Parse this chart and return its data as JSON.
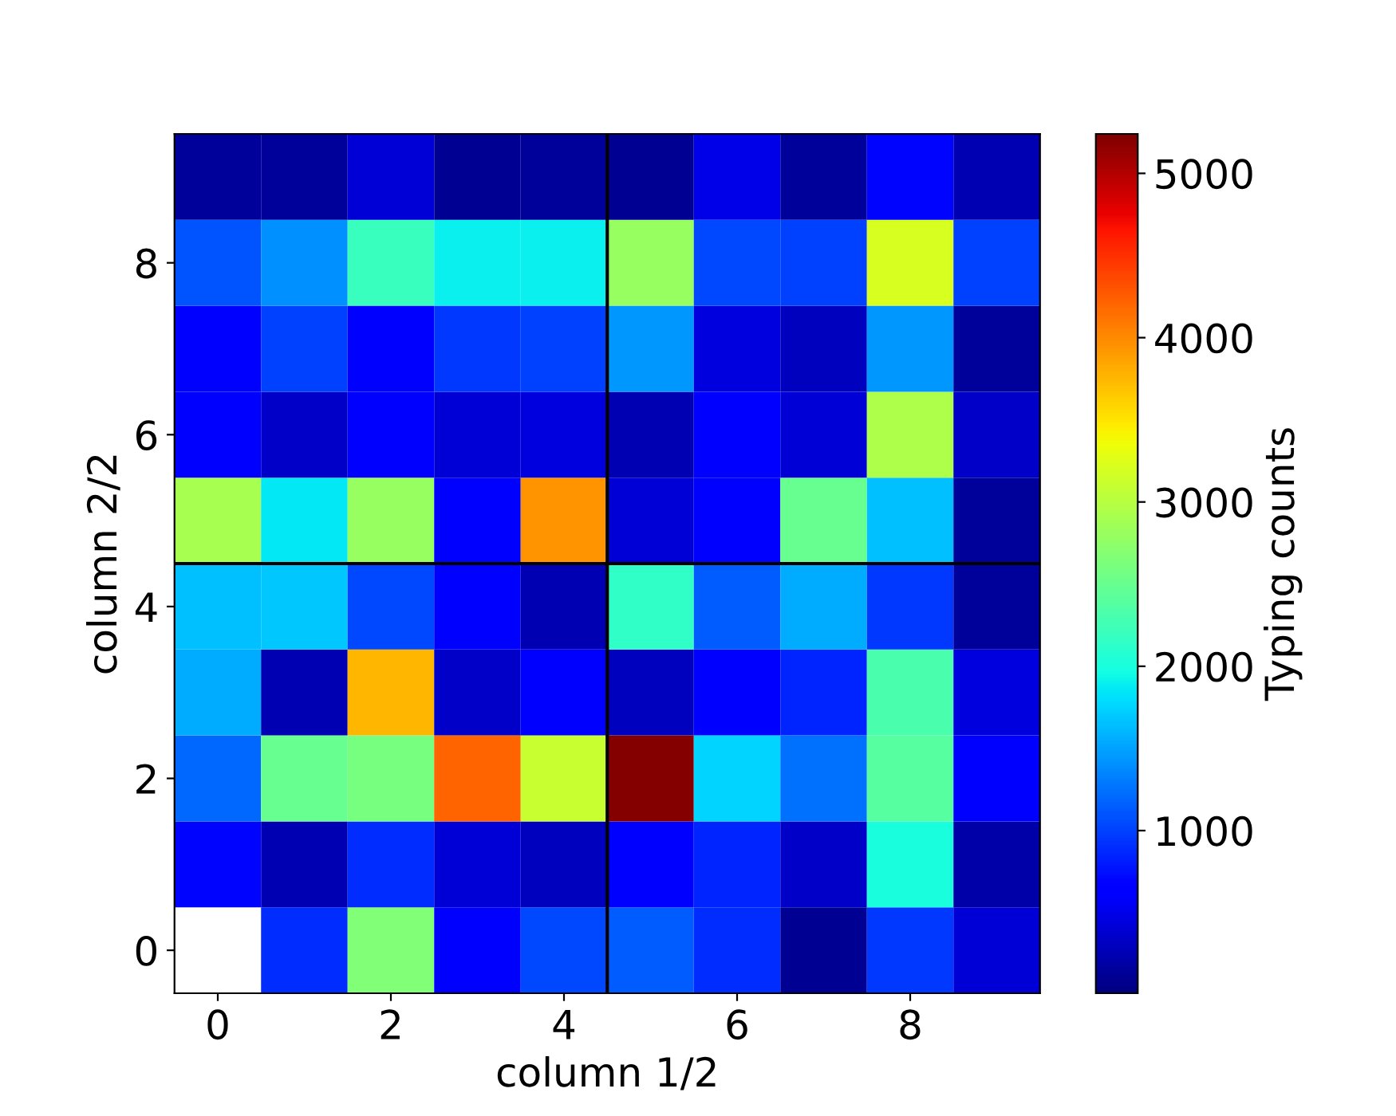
{
  "chart_data": {
    "type": "heatmap",
    "xlabel": "column 1/2",
    "ylabel": "column 2/2",
    "clabel": "Typing counts",
    "categories": [
      "0",
      null,
      "2",
      null,
      "4",
      null,
      "6",
      null,
      "8",
      null
    ],
    "y_categories": [
      null,
      "8",
      null,
      "6",
      null,
      "4",
      null,
      "2",
      null,
      "0"
    ],
    "cells": [
      [
        150,
        150,
        400,
        100,
        150,
        100,
        500,
        150,
        700,
        250
      ],
      [
        1100,
        1400,
        2200,
        1900,
        1900,
        2800,
        1050,
        1000,
        3200,
        1000
      ],
      [
        650,
        1000,
        600,
        950,
        1000,
        1450,
        450,
        300,
        1450,
        150
      ],
      [
        600,
        350,
        600,
        400,
        450,
        250,
        600,
        400,
        2950,
        350
      ],
      [
        2900,
        1850,
        2800,
        600,
        3950,
        400,
        650,
        2500,
        1650,
        150
      ],
      [
        1650,
        1700,
        1050,
        600,
        250,
        2150,
        1150,
        1550,
        950,
        150
      ],
      [
        1550,
        250,
        3750,
        350,
        600,
        300,
        600,
        850,
        2300,
        450
      ],
      [
        1200,
        2500,
        2600,
        4200,
        3100,
        5200,
        1750,
        1250,
        2400,
        600
      ],
      [
        700,
        250,
        900,
        400,
        300,
        600,
        850,
        350,
        2000,
        200
      ],
      [
        null,
        900,
        2650,
        650,
        1050,
        1150,
        900,
        100,
        950,
        400
      ]
    ],
    "clim": [
      10,
      5240
    ],
    "cticks": [
      1000,
      2000,
      3000,
      4000,
      5000
    ]
  }
}
